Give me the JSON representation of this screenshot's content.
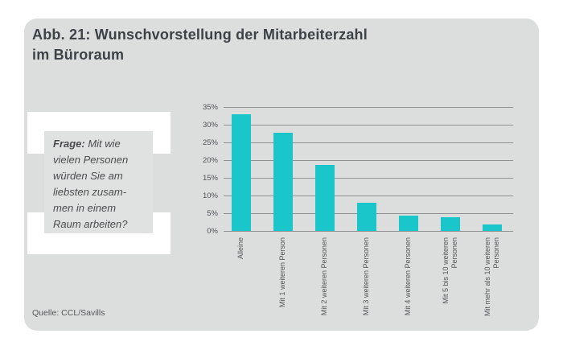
{
  "figure": {
    "title_lines": [
      "Abb. 21: Wunschvorstellung der Mitarbeiterzahl",
      "im Büroraum"
    ],
    "source": "Quelle: CCL/Savills"
  },
  "question": {
    "label": "Frage:",
    "lines": [
      "Mit wie",
      "vielen Personen",
      "würden Sie am",
      "liebsten zusam-",
      "men in einem",
      "Raum arbeiten?"
    ]
  },
  "chart_data": {
    "type": "bar",
    "title": "Wunschvorstellung der Mitarbeiterzahl im Büroraum",
    "categories": [
      "Alleine",
      "Mit 1 weiteren Person",
      "Mit 2 weiteren Personen",
      "Mit 3 weiteren Personen",
      "Mit 4 weiteren Personen",
      "Mit 5 bis 10 weiteren Personen",
      "Mit mehr als 10 weiteren Personen"
    ],
    "values": [
      33,
      27.7,
      18.7,
      8,
      4.4,
      3.8,
      1.9
    ],
    "unit": "%",
    "ytick_labels": [
      "0%",
      "5%",
      "10%",
      "15%",
      "20%",
      "25%",
      "30%",
      "35%"
    ],
    "ylim": [
      0,
      35
    ],
    "grid": true,
    "legend": false,
    "xlabel": "",
    "ylabel": "",
    "bar_color": "#1ac6c9",
    "gridline_color": "#8f9193"
  }
}
